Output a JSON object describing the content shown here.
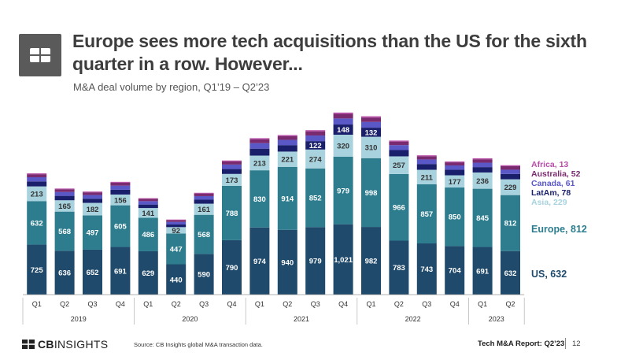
{
  "header": {
    "title": "Europe sees more tech acquisitions than the US for the sixth quarter in a row. However...",
    "subtitle": "M&A deal volume by region, Q1’19 – Q2’23"
  },
  "footer": {
    "brand_bold": "CB",
    "brand_rest": "INSIGHTS",
    "source": "Source: CB Insights global M&A transaction data.",
    "report": "Tech M&A Report: Q2’23",
    "page": "12"
  },
  "colors": {
    "US": "#1f4a6b",
    "Europe": "#2e7d8f",
    "Asia": "#a8d3de",
    "LatAm": "#1a1f6b",
    "Canada": "#5a58c6",
    "Australia": "#7a2a6e",
    "Africa": "#b84da8"
  },
  "chart_data": {
    "type": "bar",
    "stacked": true,
    "categories": [
      "Q1",
      "Q2",
      "Q3",
      "Q4",
      "Q1",
      "Q2",
      "Q3",
      "Q4",
      "Q1",
      "Q2",
      "Q3",
      "Q4",
      "Q1",
      "Q2",
      "Q3",
      "Q4",
      "Q1",
      "Q2"
    ],
    "years": [
      {
        "label": "2019",
        "span": 4
      },
      {
        "label": "2020",
        "span": 4
      },
      {
        "label": "2021",
        "span": 4
      },
      {
        "label": "2022",
        "span": 4
      },
      {
        "label": "2023",
        "span": 2
      }
    ],
    "series": [
      {
        "name": "US",
        "labeled": true,
        "values": [
          725,
          636,
          652,
          691,
          629,
          440,
          590,
          790,
          974,
          940,
          979,
          1021,
          982,
          783,
          743,
          704,
          691,
          632
        ]
      },
      {
        "name": "Europe",
        "labeled": true,
        "values": [
          632,
          568,
          497,
          605,
          486,
          447,
          568,
          788,
          830,
          914,
          852,
          979,
          998,
          966,
          857,
          850,
          845,
          812
        ]
      },
      {
        "name": "Asia",
        "labeled": true,
        "values": [
          213,
          165,
          182,
          156,
          141,
          92,
          161,
          173,
          213,
          221,
          274,
          320,
          310,
          257,
          211,
          177,
          236,
          229
        ]
      },
      {
        "name": "LatAm",
        "labeled": false,
        "values": [
          72,
          64,
          61,
          69,
          51,
          38,
          58,
          71,
          101,
          94,
          122,
          148,
          132,
          91,
          84,
          80,
          78,
          78
        ]
      },
      {
        "name": "Canada",
        "labeled": false,
        "values": [
          61,
          56,
          53,
          60,
          49,
          38,
          52,
          65,
          79,
          76,
          81,
          88,
          83,
          72,
          66,
          63,
          64,
          61
        ]
      },
      {
        "name": "Australia",
        "labeled": false,
        "values": [
          44,
          40,
          39,
          43,
          34,
          27,
          38,
          46,
          57,
          55,
          61,
          66,
          64,
          52,
          47,
          45,
          50,
          52
        ]
      },
      {
        "name": "Africa",
        "labeled": false,
        "values": [
          12,
          10,
          11,
          12,
          9,
          7,
          10,
          13,
          16,
          15,
          17,
          19,
          18,
          14,
          13,
          12,
          13,
          13
        ]
      }
    ],
    "legend": [
      {
        "name": "Africa",
        "text": "Africa, 13"
      },
      {
        "name": "Australia",
        "text": "Australia, 52"
      },
      {
        "name": "Canada",
        "text": "Canada, 61"
      },
      {
        "name": "LatAm",
        "text": "LatAm, 78"
      },
      {
        "name": "Asia",
        "text": "Asia, 229"
      },
      {
        "name": "Europe",
        "text": "Europe, 812"
      },
      {
        "name": "US",
        "text": "US, 632"
      }
    ],
    "legend_position": "right",
    "grid": false
  }
}
